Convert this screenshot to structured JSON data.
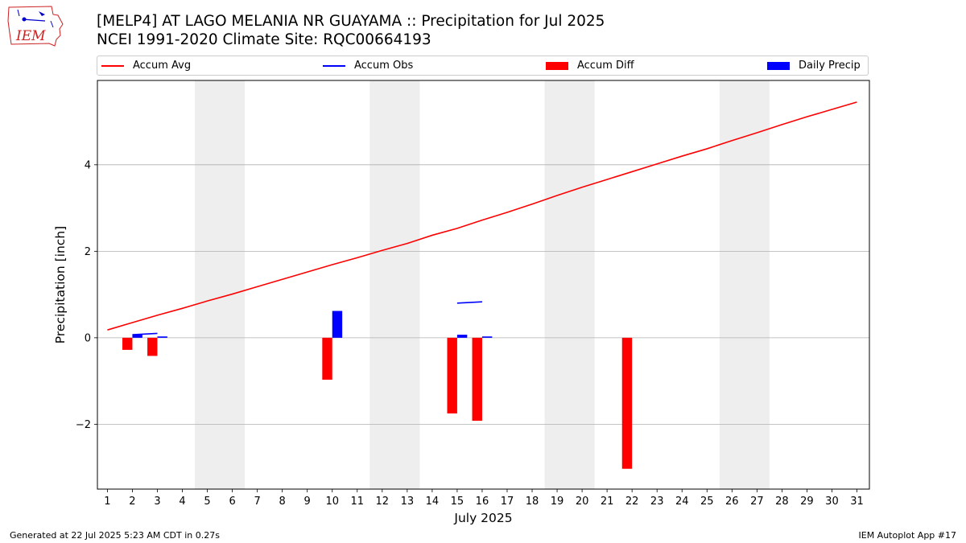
{
  "header": {
    "logo_text": "IEM",
    "title_line1": "[MELP4] AT LAGO MELANIA NR GUAYAMA :: Precipitation for Jul 2025",
    "title_line2": "NCEI 1991-2020 Climate Site: RQC00664193"
  },
  "footer": {
    "generated": "Generated at 22 Jul 2025 5:23 AM CDT in 0.27s",
    "app": "IEM Autoplot App #17"
  },
  "colors": {
    "accum_avg": "#ff0000",
    "accum_obs": "#0000ff",
    "accum_diff": "#ff0000",
    "daily_precip": "#0000ff",
    "weekend_shade": "#eeeeee",
    "grid": "#b0b0b0"
  },
  "chart_data": {
    "type": "bar",
    "xlabel": "July 2025",
    "ylabel": "Precipitation [inch]",
    "xlim": [
      0.6,
      31.5
    ],
    "ylim": [
      -3.5,
      5.95
    ],
    "yticks": [
      -2,
      0,
      2,
      4
    ],
    "ytick_labels": [
      "−2",
      "0",
      "2",
      "4"
    ],
    "x": [
      1,
      2,
      3,
      4,
      5,
      6,
      7,
      8,
      9,
      10,
      11,
      12,
      13,
      14,
      15,
      16,
      17,
      18,
      19,
      20,
      21,
      22,
      23,
      24,
      25,
      26,
      27,
      28,
      29,
      30,
      31
    ],
    "grid": "horizontal",
    "legend_position": "top",
    "shaded_day_ranges": [
      [
        4.5,
        6.5
      ],
      [
        11.5,
        13.5
      ],
      [
        18.5,
        20.5
      ],
      [
        25.5,
        27.5
      ]
    ],
    "legend": [
      "Accum Avg",
      "Accum Obs",
      "Accum Diff",
      "Daily Precip"
    ],
    "series": [
      {
        "name": "Accum Avg",
        "kind": "line",
        "values": [
          0.18,
          0.35,
          0.52,
          0.68,
          0.85,
          1.01,
          1.18,
          1.35,
          1.52,
          1.69,
          1.85,
          2.02,
          2.18,
          2.37,
          2.53,
          2.72,
          2.9,
          3.09,
          3.29,
          3.48,
          3.66,
          3.84,
          4.02,
          4.2,
          4.37,
          4.56,
          4.74,
          4.93,
          5.11,
          5.28,
          5.45
        ]
      },
      {
        "name": "Accum Obs",
        "kind": "segments",
        "segments": [
          {
            "x": [
              2,
              3
            ],
            "y": [
              0.07,
              0.1
            ]
          },
          {
            "x": [
              15,
              16
            ],
            "y": [
              0.8,
              0.83
            ]
          }
        ]
      },
      {
        "name": "Accum Diff",
        "kind": "bar",
        "x": [
          1.8,
          2.8,
          9.8,
          14.8,
          15.8,
          21.8
        ],
        "values": [
          -0.28,
          -0.42,
          -0.97,
          -1.75,
          -1.92,
          -3.03
        ]
      },
      {
        "name": "Daily Precip",
        "kind": "bar",
        "x": [
          2.2,
          3.2,
          10.2,
          15.2,
          16.2
        ],
        "values": [
          0.07,
          0.03,
          0.62,
          0.07,
          0.03
        ]
      }
    ]
  }
}
